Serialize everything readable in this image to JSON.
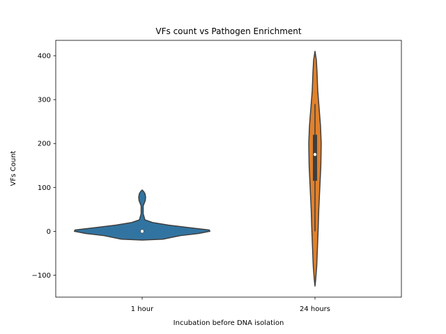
{
  "chart_data": {
    "type": "violin",
    "title": "VFs count vs Pathogen Enrichment",
    "xlabel": "Incubation before DNA isolation",
    "ylabel": "VFs Count",
    "ylim": [
      -150,
      435
    ],
    "yticks": [
      -100,
      0,
      100,
      200,
      300,
      400
    ],
    "ytick_labels": [
      "−100",
      "0",
      "100",
      "200",
      "300",
      "400"
    ],
    "grid": false,
    "legend": "none",
    "categories": [
      "1 hour",
      "24 hours"
    ],
    "violins": [
      {
        "category": "1 hour",
        "color": "#3274a1",
        "profile": [
          {
            "y": -20,
            "w": 0.0
          },
          {
            "y": -18,
            "w": 0.3
          },
          {
            "y": -10,
            "w": 0.55
          },
          {
            "y": -5,
            "w": 0.82
          },
          {
            "y": 0,
            "w": 0.98
          },
          {
            "y": 3,
            "w": 0.97
          },
          {
            "y": 8,
            "w": 0.7
          },
          {
            "y": 14,
            "w": 0.38
          },
          {
            "y": 20,
            "w": 0.15
          },
          {
            "y": 26,
            "w": 0.04
          },
          {
            "y": 40,
            "w": 0.015
          },
          {
            "y": 58,
            "w": 0.015
          },
          {
            "y": 64,
            "w": 0.03
          },
          {
            "y": 70,
            "w": 0.045
          },
          {
            "y": 78,
            "w": 0.05
          },
          {
            "y": 86,
            "w": 0.04
          },
          {
            "y": 91,
            "w": 0.02
          },
          {
            "y": 94,
            "w": 0.0
          }
        ],
        "q1": -2,
        "median": 0,
        "q3": 2,
        "whisker_low": -5,
        "whisker_high": 5
      },
      {
        "category": "24 hours",
        "color": "#e1812c",
        "profile": [
          {
            "y": -125,
            "w": 0.0
          },
          {
            "y": -110,
            "w": 0.01
          },
          {
            "y": -80,
            "w": 0.025
          },
          {
            "y": -40,
            "w": 0.035
          },
          {
            "y": 0,
            "w": 0.045
          },
          {
            "y": 50,
            "w": 0.055
          },
          {
            "y": 100,
            "w": 0.07
          },
          {
            "y": 150,
            "w": 0.085
          },
          {
            "y": 200,
            "w": 0.09
          },
          {
            "y": 240,
            "w": 0.08
          },
          {
            "y": 280,
            "w": 0.06
          },
          {
            "y": 320,
            "w": 0.04
          },
          {
            "y": 360,
            "w": 0.03
          },
          {
            "y": 390,
            "w": 0.02
          },
          {
            "y": 410,
            "w": 0.0
          }
        ],
        "q1": 115,
        "median": 175,
        "q3": 220,
        "whisker_low": 0,
        "whisker_high": 290
      }
    ]
  }
}
